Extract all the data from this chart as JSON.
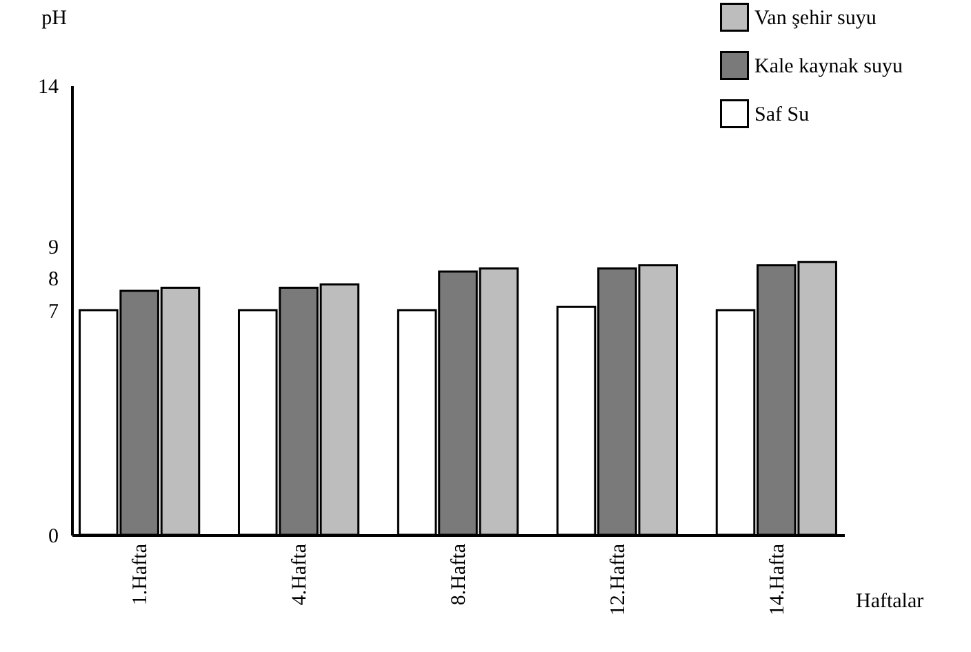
{
  "chart_data": {
    "type": "bar",
    "ylabel": "pH",
    "xlabel": "Haftalar",
    "categories": [
      "1.Hafta",
      "4.Hafta",
      "8.Hafta",
      "12.Hafta",
      "14.Hafta"
    ],
    "series": [
      {
        "name": "Saf  Su",
        "color": "#ffffff",
        "values": [
          7,
          7,
          7,
          7.1,
          7
        ]
      },
      {
        "name": "Kale kaynak suyu",
        "color": "#7a7a7a",
        "values": [
          7.6,
          7.7,
          8.2,
          8.3,
          8.4
        ]
      },
      {
        "name": "Van şehir suyu",
        "color": "#bdbdbd",
        "values": [
          7.7,
          7.8,
          8.3,
          8.4,
          8.5
        ]
      }
    ],
    "ylim": [
      0,
      14
    ],
    "yticks": [
      0,
      7,
      8,
      9,
      14
    ],
    "grid": false,
    "legend": "top right"
  }
}
